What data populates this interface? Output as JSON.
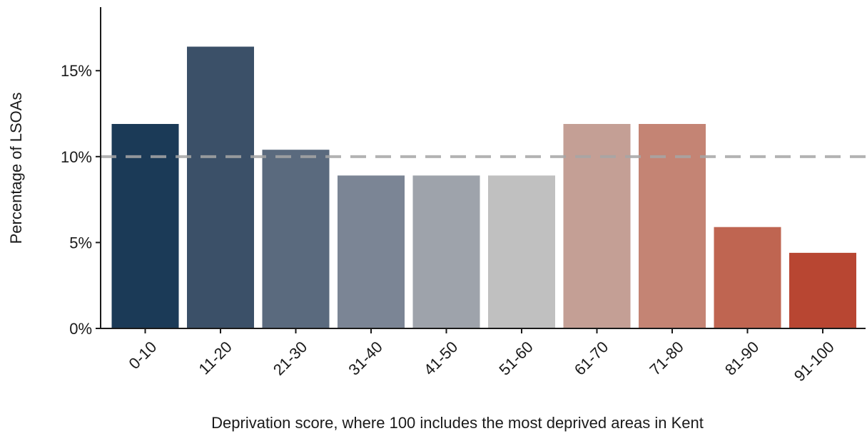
{
  "chart_data": {
    "type": "bar",
    "title": "",
    "xlabel": "Deprivation score, where 100 includes the most deprived areas in Kent",
    "ylabel": "Percentage of LSOAs",
    "categories": [
      "0-10",
      "11-20",
      "21-30",
      "31-40",
      "41-50",
      "51-60",
      "61-70",
      "71-80",
      "81-90",
      "91-100"
    ],
    "values": [
      11.9,
      16.4,
      10.4,
      8.9,
      8.9,
      8.9,
      11.9,
      11.9,
      5.9,
      4.4
    ],
    "colors": [
      "#1b3a57",
      "#3b5068",
      "#5a6a7e",
      "#7b8595",
      "#9ea3ab",
      "#c0c0c0",
      "#c49f95",
      "#c48474",
      "#bf6551",
      "#b84632"
    ],
    "ylim": [
      0,
      18.7
    ],
    "yticks": [
      0,
      5,
      10,
      15
    ],
    "ytick_labels": [
      "0%",
      "5%",
      "10%",
      "15%"
    ],
    "reference_line": {
      "value": 10,
      "style": "dashed",
      "color": "#a6a6a6"
    },
    "grid": false,
    "legend": "none"
  }
}
